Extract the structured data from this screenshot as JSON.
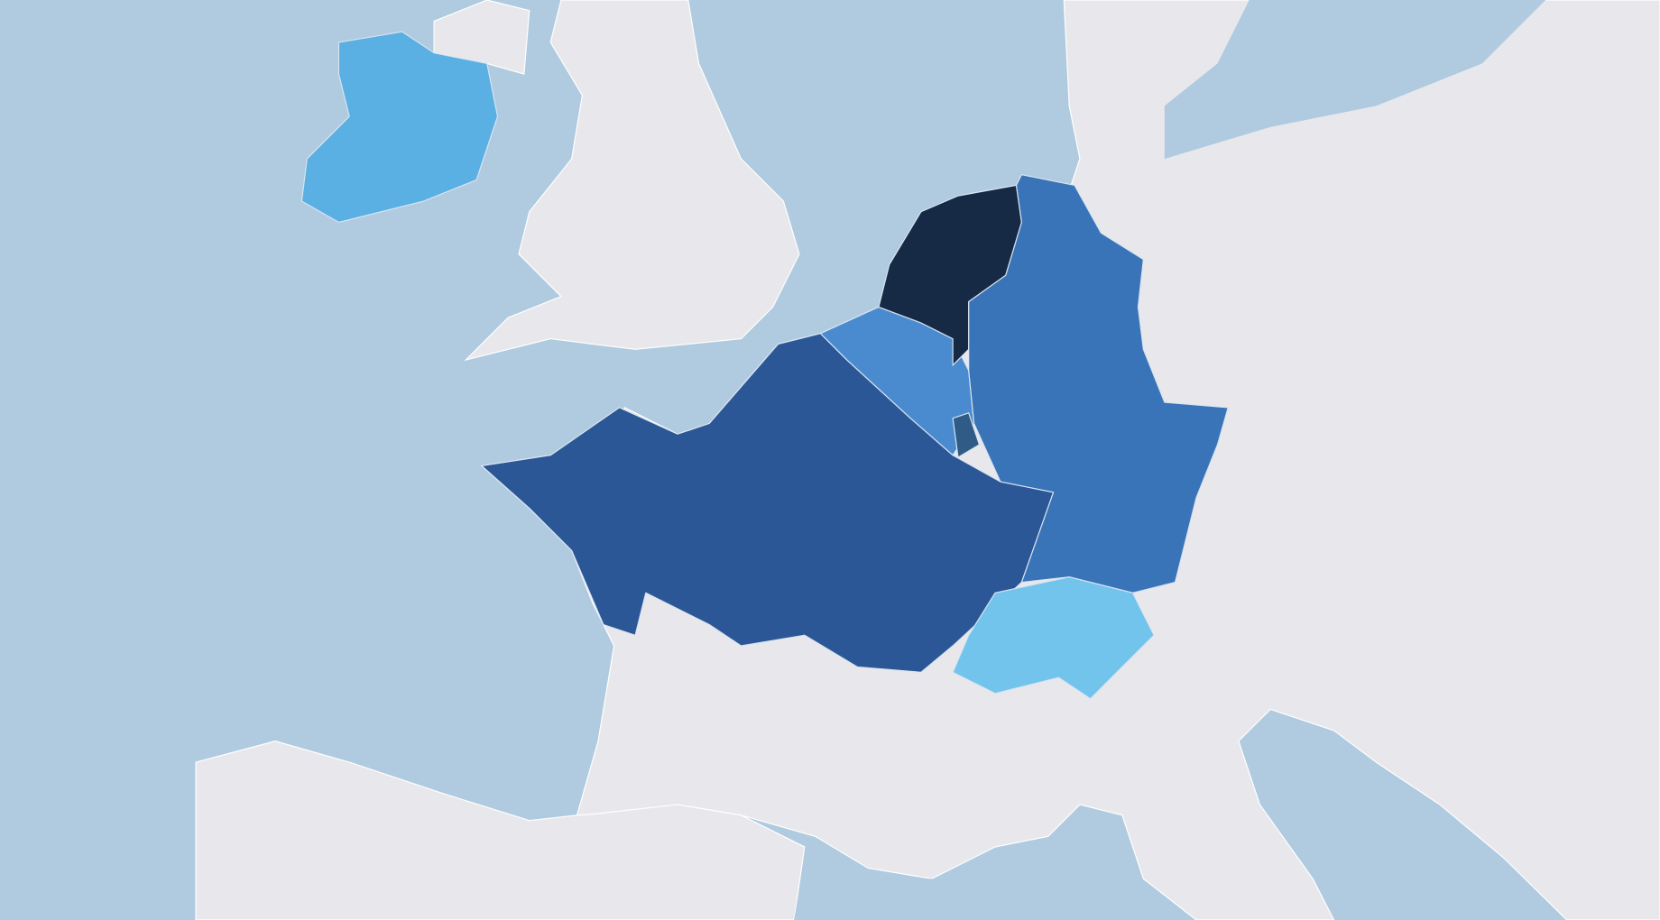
{
  "map": {
    "fills": [
      "#5aafe3",
      "#2b5797",
      "#4a8bd0",
      "#172a45",
      "#3a74b8",
      "#73c4ec",
      "#2f5c86"
    ]
  }
}
